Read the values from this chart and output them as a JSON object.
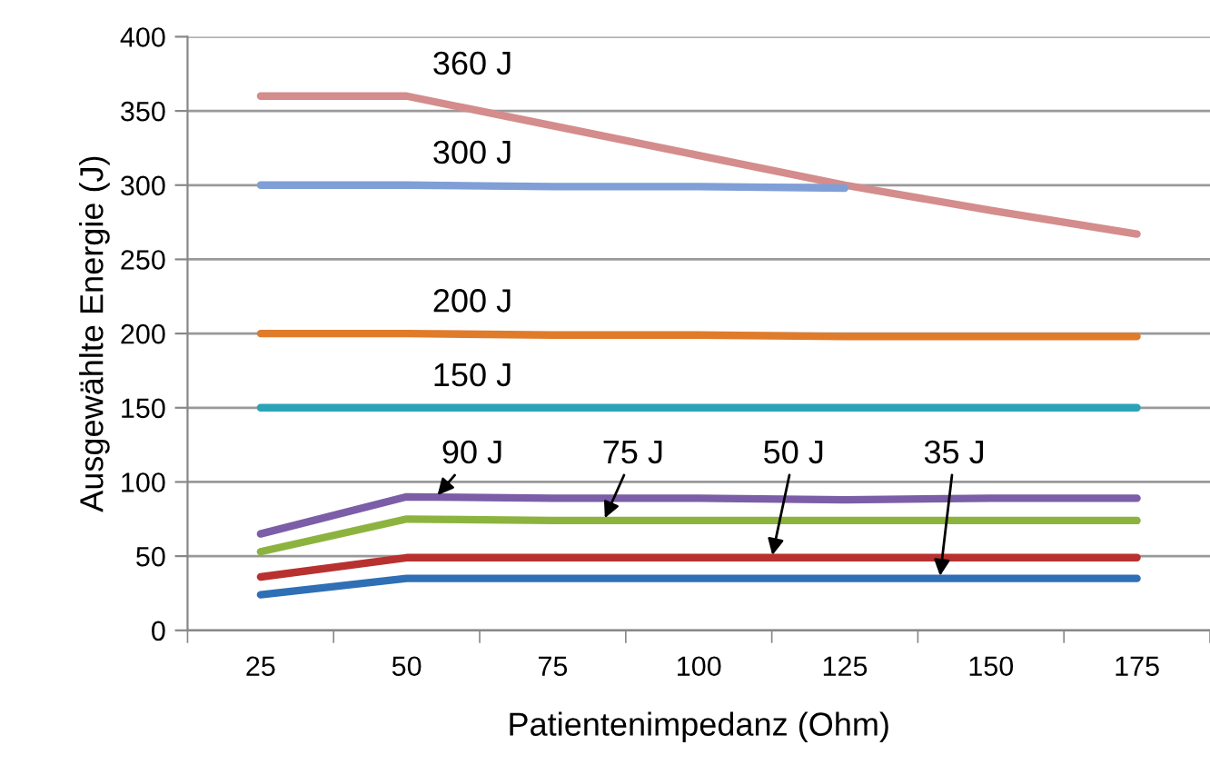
{
  "chart_data": {
    "type": "line",
    "xlabel": "Patientenimpedanz (Ohm)",
    "ylabel": "Ausgewählte Energie (J)",
    "categories": [
      "25",
      "50",
      "75",
      "100",
      "125",
      "150",
      "175"
    ],
    "series": [
      {
        "name": "360 J",
        "color": "#d48c8c",
        "values": [
          360,
          360,
          340,
          320,
          300,
          283,
          267
        ]
      },
      {
        "name": "300 J",
        "color": "#7f9fd6",
        "values": [
          300,
          300,
          299,
          299,
          298,
          null,
          null
        ]
      },
      {
        "name": "200 J",
        "color": "#e07b2a",
        "values": [
          200,
          200,
          199,
          199,
          198,
          198,
          198
        ]
      },
      {
        "name": "150 J",
        "color": "#2aa3b8",
        "values": [
          150,
          150,
          150,
          150,
          150,
          150,
          150
        ]
      },
      {
        "name": "90 J",
        "color": "#7b5ea7",
        "values": [
          65,
          90,
          89,
          89,
          88,
          89,
          89
        ]
      },
      {
        "name": "75 J",
        "color": "#8db33f",
        "values": [
          53,
          75,
          74,
          74,
          74,
          74,
          74
        ]
      },
      {
        "name": "50 J",
        "color": "#b8312f",
        "values": [
          36,
          49,
          49,
          49,
          49,
          49,
          49
        ]
      },
      {
        "name": "35 J",
        "color": "#2f6fb5",
        "values": [
          24,
          35,
          35,
          35,
          35,
          35,
          35
        ]
      }
    ],
    "ylim": [
      0,
      400
    ],
    "yticks": [
      0,
      50,
      100,
      150,
      200,
      250,
      300,
      350,
      400
    ],
    "grid": "y",
    "marker": "none",
    "line_style": "solid",
    "legend": false
  }
}
